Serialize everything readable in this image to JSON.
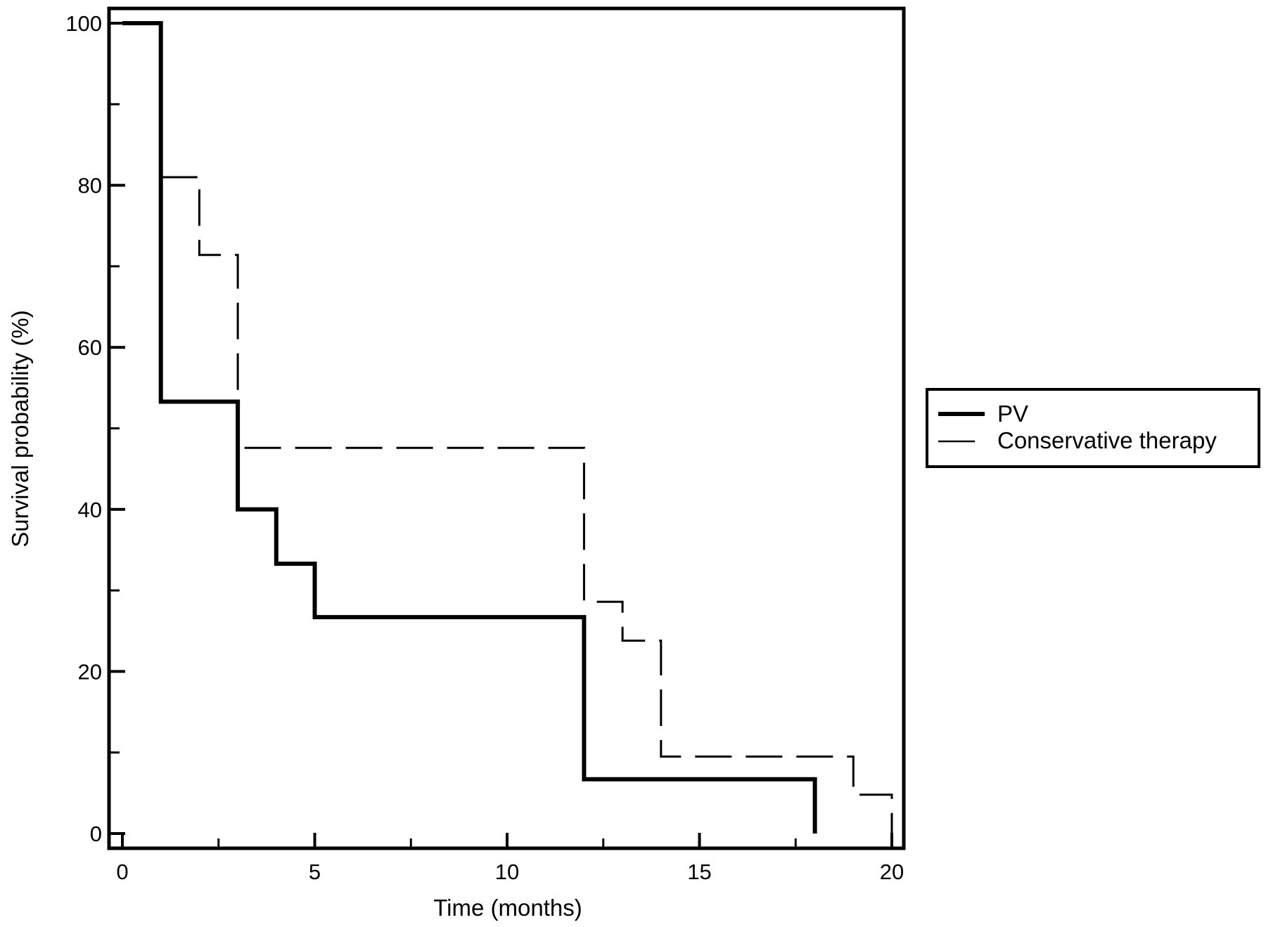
{
  "chart_data": {
    "type": "line",
    "step": true,
    "title": "",
    "xlabel": "Time (months)",
    "ylabel": "Survival probability (%)",
    "xlim": [
      0,
      20
    ],
    "ylim": [
      0,
      100
    ],
    "x_ticks": [
      0,
      5,
      10,
      15,
      20
    ],
    "x_tick_labels": [
      "0",
      "5",
      "10",
      "15",
      "20"
    ],
    "y_ticks": [
      0,
      20,
      40,
      60,
      80,
      100
    ],
    "y_tick_labels": [
      "0",
      "20",
      "40",
      "60",
      "80",
      "100"
    ],
    "grid": false,
    "legend_position": "right",
    "series": [
      {
        "name": "PV",
        "style": "solid",
        "color": "#000000",
        "points": [
          [
            0,
            100
          ],
          [
            1,
            100
          ],
          [
            1,
            53.3
          ],
          [
            3,
            53.3
          ],
          [
            3,
            40
          ],
          [
            4,
            40
          ],
          [
            4,
            33.3
          ],
          [
            5,
            33.3
          ],
          [
            5,
            26.7
          ],
          [
            12,
            26.7
          ],
          [
            12,
            6.7
          ],
          [
            18,
            6.7
          ],
          [
            18,
            0
          ]
        ]
      },
      {
        "name": "Conservative therapy",
        "style": "dashed",
        "color": "#000000",
        "points": [
          [
            1,
            81
          ],
          [
            2,
            81
          ],
          [
            2,
            71.4
          ],
          [
            3,
            71.4
          ],
          [
            3,
            47.6
          ],
          [
            12,
            47.6
          ],
          [
            12,
            28.6
          ],
          [
            13,
            28.6
          ],
          [
            13,
            23.8
          ],
          [
            14,
            23.8
          ],
          [
            14,
            9.5
          ],
          [
            19,
            9.5
          ],
          [
            19,
            4.8
          ],
          [
            20,
            4.8
          ],
          [
            20,
            0
          ]
        ]
      }
    ]
  }
}
